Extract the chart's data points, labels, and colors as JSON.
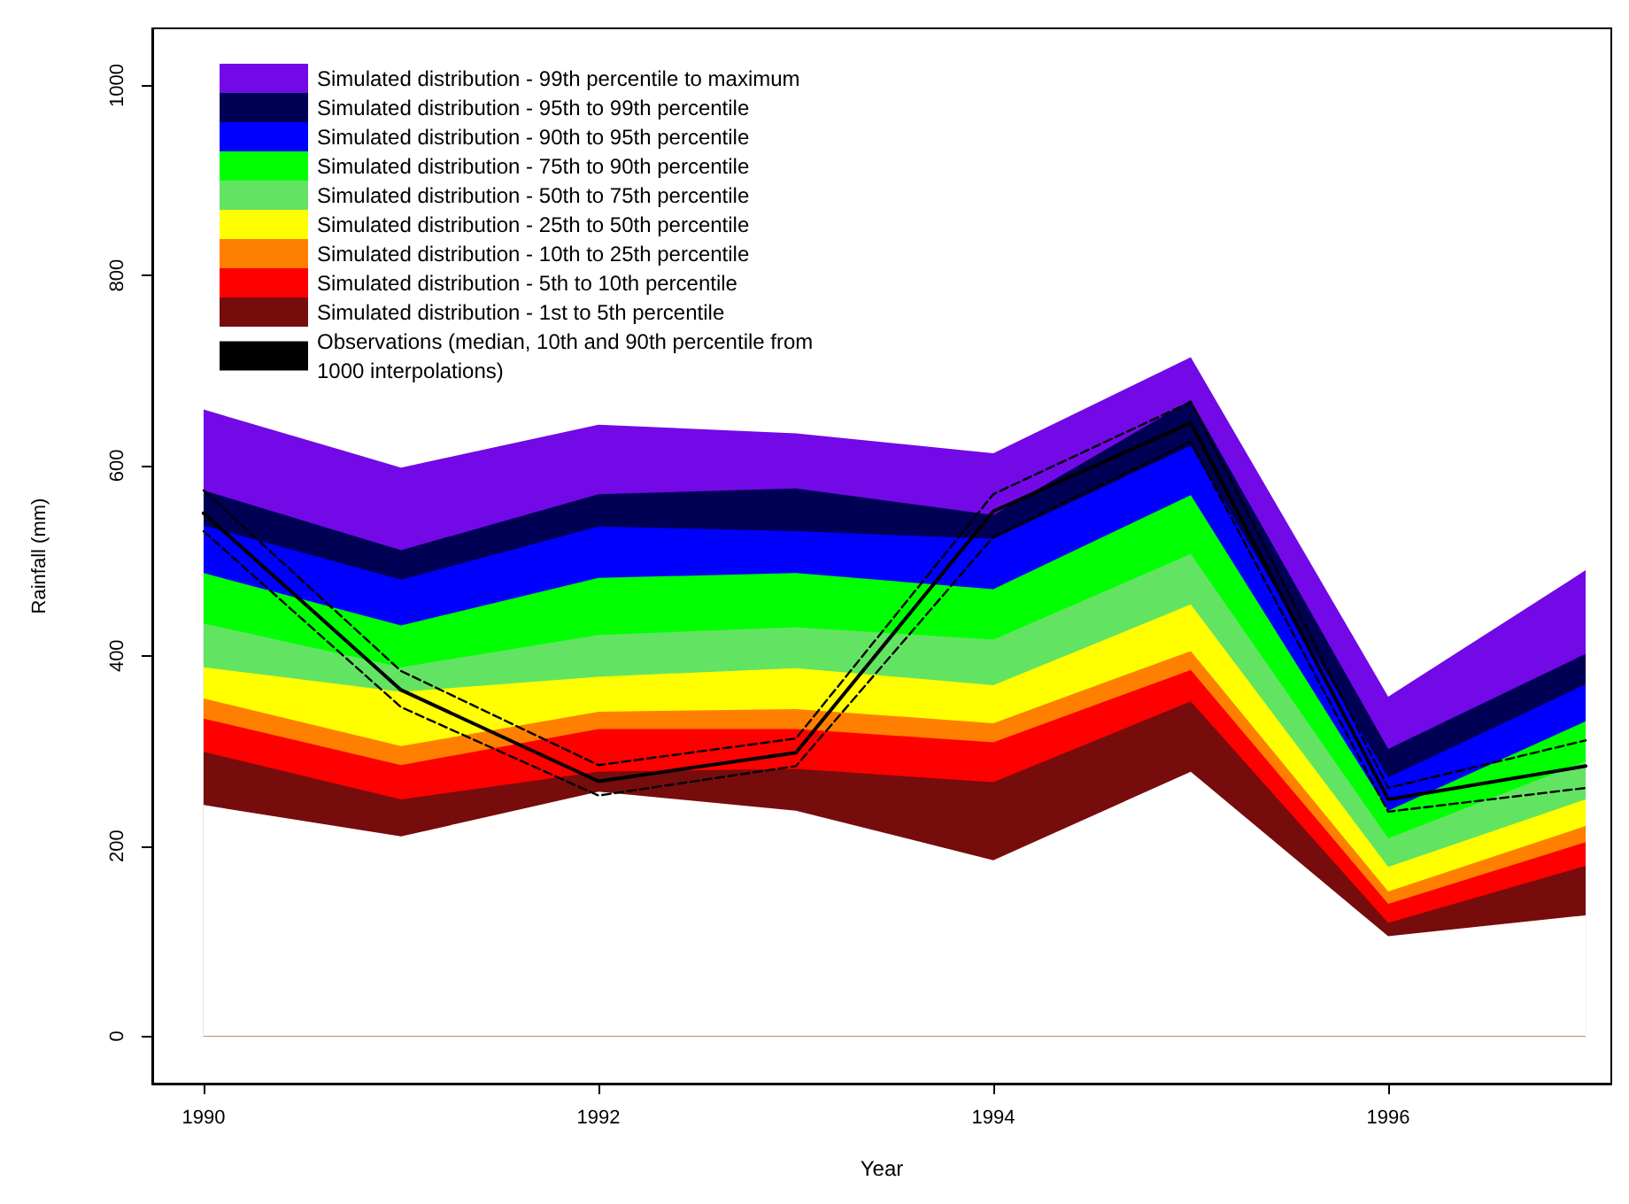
{
  "chart_data": {
    "type": "area",
    "xlabel": "Year",
    "ylabel": "Rainfall (mm)",
    "x": [
      1990,
      1991,
      1992,
      1993,
      1994,
      1995,
      1996,
      1997
    ],
    "xlim": [
      1989.74,
      1997.13
    ],
    "xticks": [
      1990,
      1992,
      1994,
      1996
    ],
    "ylim": [
      -50,
      1060
    ],
    "yticks": [
      0,
      200,
      400,
      600,
      800,
      1000
    ],
    "legend": "top left",
    "series": [
      {
        "name": "Simulated distribution - 99th percentile to maximum",
        "color": "#7209e6",
        "values": [
          659,
          598,
          643,
          634,
          613,
          714,
          357,
          490
        ]
      },
      {
        "name": "Simulated distribution - 95th to 99th percentile",
        "color": "#000055",
        "values": [
          574,
          511,
          570,
          576,
          548,
          669,
          302,
          402
        ]
      },
      {
        "name": "Simulated distribution - 90th to 95th percentile",
        "color": "#0000ff",
        "values": [
          537,
          480,
          536,
          531,
          523,
          621,
          272,
          370
        ]
      },
      {
        "name": "Simulated distribution - 75th to 90th percentile",
        "color": "#00ff00",
        "values": [
          487,
          432,
          482,
          487,
          470,
          569,
          237,
          331
        ]
      },
      {
        "name": "Simulated distribution - 50th to 75th percentile",
        "color": "#62e462",
        "values": [
          434,
          388,
          422,
          430,
          417,
          507,
          208,
          289
        ]
      },
      {
        "name": "Simulated distribution - 25th to 50th percentile",
        "color": "#ffff00",
        "values": [
          388,
          362,
          378,
          387,
          369,
          454,
          178,
          249
        ]
      },
      {
        "name": "Simulated distribution - 10th to 25th percentile",
        "color": "#ff7f00",
        "values": [
          355,
          305,
          341,
          344,
          329,
          405,
          152,
          221
        ]
      },
      {
        "name": "Simulated distribution - 5th to 10th percentile",
        "color": "#ff0000",
        "values": [
          334,
          285,
          323,
          323,
          309,
          385,
          139,
          204
        ]
      },
      {
        "name": "Simulated distribution - 1st to 5th percentile",
        "color": "#770c0c",
        "values": [
          299,
          249,
          278,
          281,
          267,
          352,
          119,
          179
        ]
      },
      {
        "color": "#ffffff",
        "values": [
          243,
          210,
          257,
          237,
          185,
          278,
          105,
          127
        ]
      },
      {
        "type": "line",
        "name": "Observations (median, 10th and 90th percentile from 1000 interpolations)",
        "color": "#000000",
        "line_style": "solid",
        "values": [
          550,
          364,
          268,
          298,
          552,
          645,
          249,
          284
        ]
      },
      {
        "type": "line",
        "color": "#000000",
        "line_style": "dashed",
        "values": [
          574,
          384,
          285,
          313,
          570,
          667,
          261,
          311
        ]
      },
      {
        "type": "line",
        "color": "#000000",
        "line_style": "dashed",
        "values": [
          531,
          346,
          253,
          284,
          525,
          625,
          236,
          261
        ]
      }
    ]
  }
}
